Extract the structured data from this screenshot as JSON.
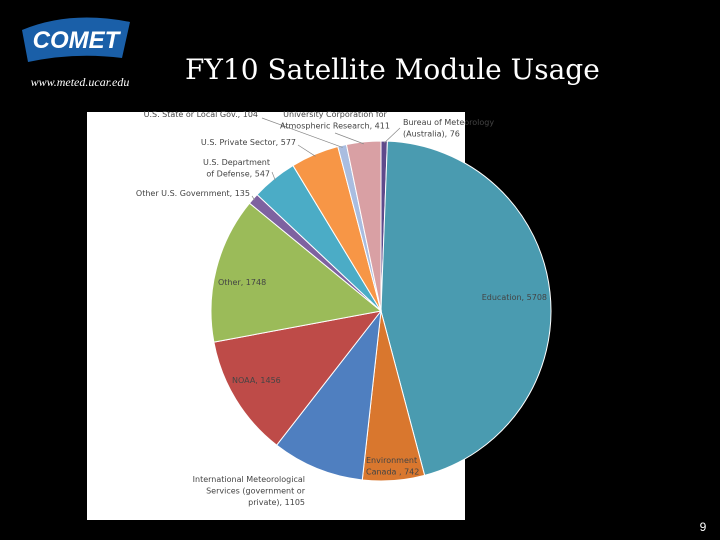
{
  "logo": "COMET",
  "website": "www.meted.ucar.edu",
  "page_number": "9",
  "chart_data": {
    "type": "pie",
    "title": "FY10 Satellite Module Usage",
    "values": [
      76,
      5708,
      742,
      1105,
      1456,
      1748,
      135,
      547,
      577,
      104,
      411
    ],
    "value_labels": [
      [
        "Bureau of Meteorology",
        "(Australia), 76"
      ],
      [
        "Education, 5708"
      ],
      [
        "Environment",
        "Canada , 742"
      ],
      [
        "International Meteorological",
        "Services (government or",
        "private), 1105"
      ],
      [
        "NOAA, 1456"
      ],
      [
        "Other, 1748"
      ],
      [
        "Other U.S. Government, 135"
      ],
      [
        "U.S. Department",
        "of Defense, 547"
      ],
      [
        "U.S. Private Sector, 577"
      ],
      [
        "U.S. State or Local Gov., 104"
      ],
      [
        "University Corporation for",
        "Atmospheric Research, 411"
      ]
    ],
    "colors": [
      "#5f4a8b",
      "#4a9bb0",
      "#d9772e",
      "#4f7fc0",
      "#be4b48",
      "#9bbb59",
      "#7e62a0",
      "#4bacc6",
      "#f79646",
      "#a9bde0",
      "#d9a0a4"
    ]
  }
}
